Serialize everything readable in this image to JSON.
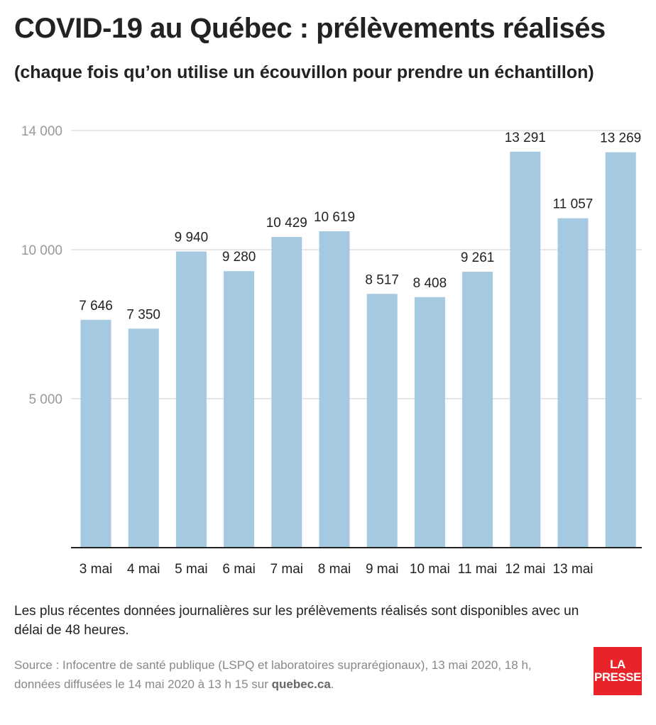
{
  "title": "COVID-19 au Québec : prélèvements réalisés",
  "subtitle": "(chaque fois qu’on utilise un écouvillon pour prendre un échantillon)",
  "note": "Les plus récentes données journalières sur les prélèvements réalisés sont disponibles avec un délai de 48 heures.",
  "source": {
    "text": "Source : Infocentre de santé publique (LSPQ et laboratoires suprarégionaux), 13 mai 2020, 18 h, données diffusées le 14 mai 2020 à 13  h 15 sur ",
    "site": "quebec.ca",
    "end": "."
  },
  "logo": {
    "line1": "LA",
    "line2": "PRESSE"
  },
  "colors": {
    "bar": "#a4c9e1",
    "grid": "#dddddd",
    "axis": "#222222",
    "tick_label": "#999999",
    "logo": "#e8232a"
  },
  "chart_data": {
    "type": "bar",
    "title": "COVID-19 au Québec : prélèvements réalisés",
    "subtitle": "(chaque fois qu’on utilise un écouvillon pour prendre un échantillon)",
    "categories": [
      "3 mai",
      "4 mai",
      "5 mai",
      "6 mai",
      "7 mai",
      "8 mai",
      "9 mai",
      "10 mai",
      "11 mai",
      "12 mai",
      "13 mai",
      ""
    ],
    "values": [
      7646,
      7350,
      9940,
      9280,
      10429,
      10619,
      8517,
      8408,
      9261,
      13291,
      11057,
      13269
    ],
    "value_labels": [
      "7 646",
      "7 350",
      "9 940",
      "9 280",
      "10 429",
      "10 619",
      "8 517",
      "8 408",
      "9 261",
      "13 291",
      "11 057",
      "13 269"
    ],
    "yticks": [
      5000,
      10000,
      14000
    ],
    "ytick_labels": [
      "5 000",
      "10 000",
      "14 000"
    ],
    "ylim": [
      0,
      14000
    ],
    "xlabel": "",
    "ylabel": "",
    "grid": true,
    "legend": "none"
  }
}
